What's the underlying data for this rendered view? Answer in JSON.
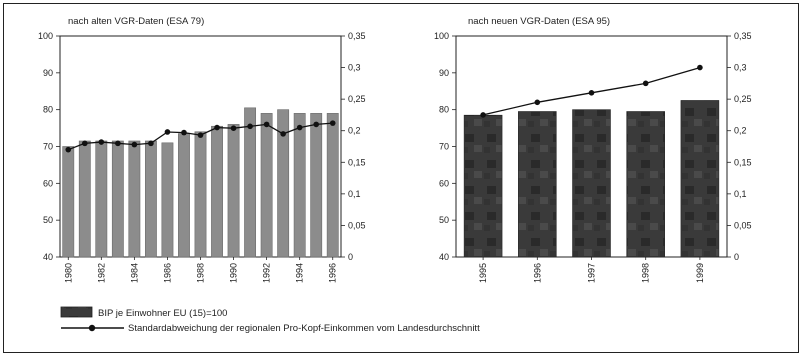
{
  "chart_data": [
    {
      "type": "bar",
      "title": "nach alten VGR-Daten (ESA 79)",
      "categories": [
        "1980",
        "1981",
        "1982",
        "1983",
        "1984",
        "1985",
        "1986",
        "1987",
        "1988",
        "1989",
        "1990",
        "1991",
        "1992",
        "1993",
        "1994",
        "1995",
        "1996"
      ],
      "x_tick_labels": [
        "1980",
        "1982",
        "1984",
        "1986",
        "1988",
        "1990",
        "1992",
        "1994",
        "1996"
      ],
      "series": [
        {
          "name": "BIP je Einwohner EU (15)=100",
          "type": "bar",
          "axis": "left",
          "values": [
            70,
            71.5,
            71.5,
            71.5,
            71.5,
            71.5,
            71,
            73.5,
            74,
            75.5,
            76,
            80.5,
            79,
            80,
            79,
            79,
            79
          ]
        },
        {
          "name": "Standardabweichung der regionalen Pro-Kopf-Einkommen vom Landesdurchschnitt",
          "type": "line",
          "axis": "right",
          "values": [
            0.17,
            0.18,
            0.182,
            0.18,
            0.178,
            0.18,
            0.198,
            0.197,
            0.193,
            0.205,
            0.204,
            0.207,
            0.21,
            0.195,
            0.205,
            0.21,
            0.212
          ]
        }
      ],
      "ylim_left": [
        40,
        100
      ],
      "yticks_left": [
        "40",
        "50",
        "60",
        "70",
        "80",
        "90",
        "100"
      ],
      "ylim_right": [
        0,
        0.35
      ],
      "yticks_right": [
        "0",
        "0,05",
        "0,1",
        "0,15",
        "0,2",
        "0,25",
        "0,3",
        "0,35"
      ]
    },
    {
      "type": "bar",
      "title": "nach neuen VGR-Daten (ESA 95)",
      "categories": [
        "1995",
        "1996",
        "1997",
        "1998",
        "1999"
      ],
      "x_tick_labels": [
        "1995",
        "1996",
        "1997",
        "1998",
        "1999"
      ],
      "series": [
        {
          "name": "BIP je Einwohner EU (15)=100",
          "type": "bar",
          "axis": "left",
          "values": [
            78.5,
            79.5,
            80,
            79.5,
            82.5
          ]
        },
        {
          "name": "Standardabweichung der regionalen Pro-Kopf-Einkommen vom Landesdurchschnitt",
          "type": "line",
          "axis": "right",
          "values": [
            0.225,
            0.245,
            0.26,
            0.275,
            0.3
          ]
        }
      ],
      "ylim_left": [
        40,
        100
      ],
      "yticks_left": [
        "40",
        "50",
        "60",
        "70",
        "80",
        "90",
        "100"
      ],
      "ylim_right": [
        0,
        0.35
      ],
      "yticks_right": [
        "0",
        "0,05",
        "0,1",
        "0,15",
        "0,2",
        "0,25",
        "0,3",
        "0,35"
      ]
    }
  ],
  "legend": {
    "bar_label": "BIP je Einwohner EU (15)=100",
    "line_label": "Standardabweichung der regionalen Pro-Kopf-Einkommen vom Landesdurchschnitt"
  },
  "colors": {
    "bar_old": "#8c8c8c",
    "bar_new": "#3c3c3c",
    "line": "#111111",
    "frame": "#222222"
  }
}
